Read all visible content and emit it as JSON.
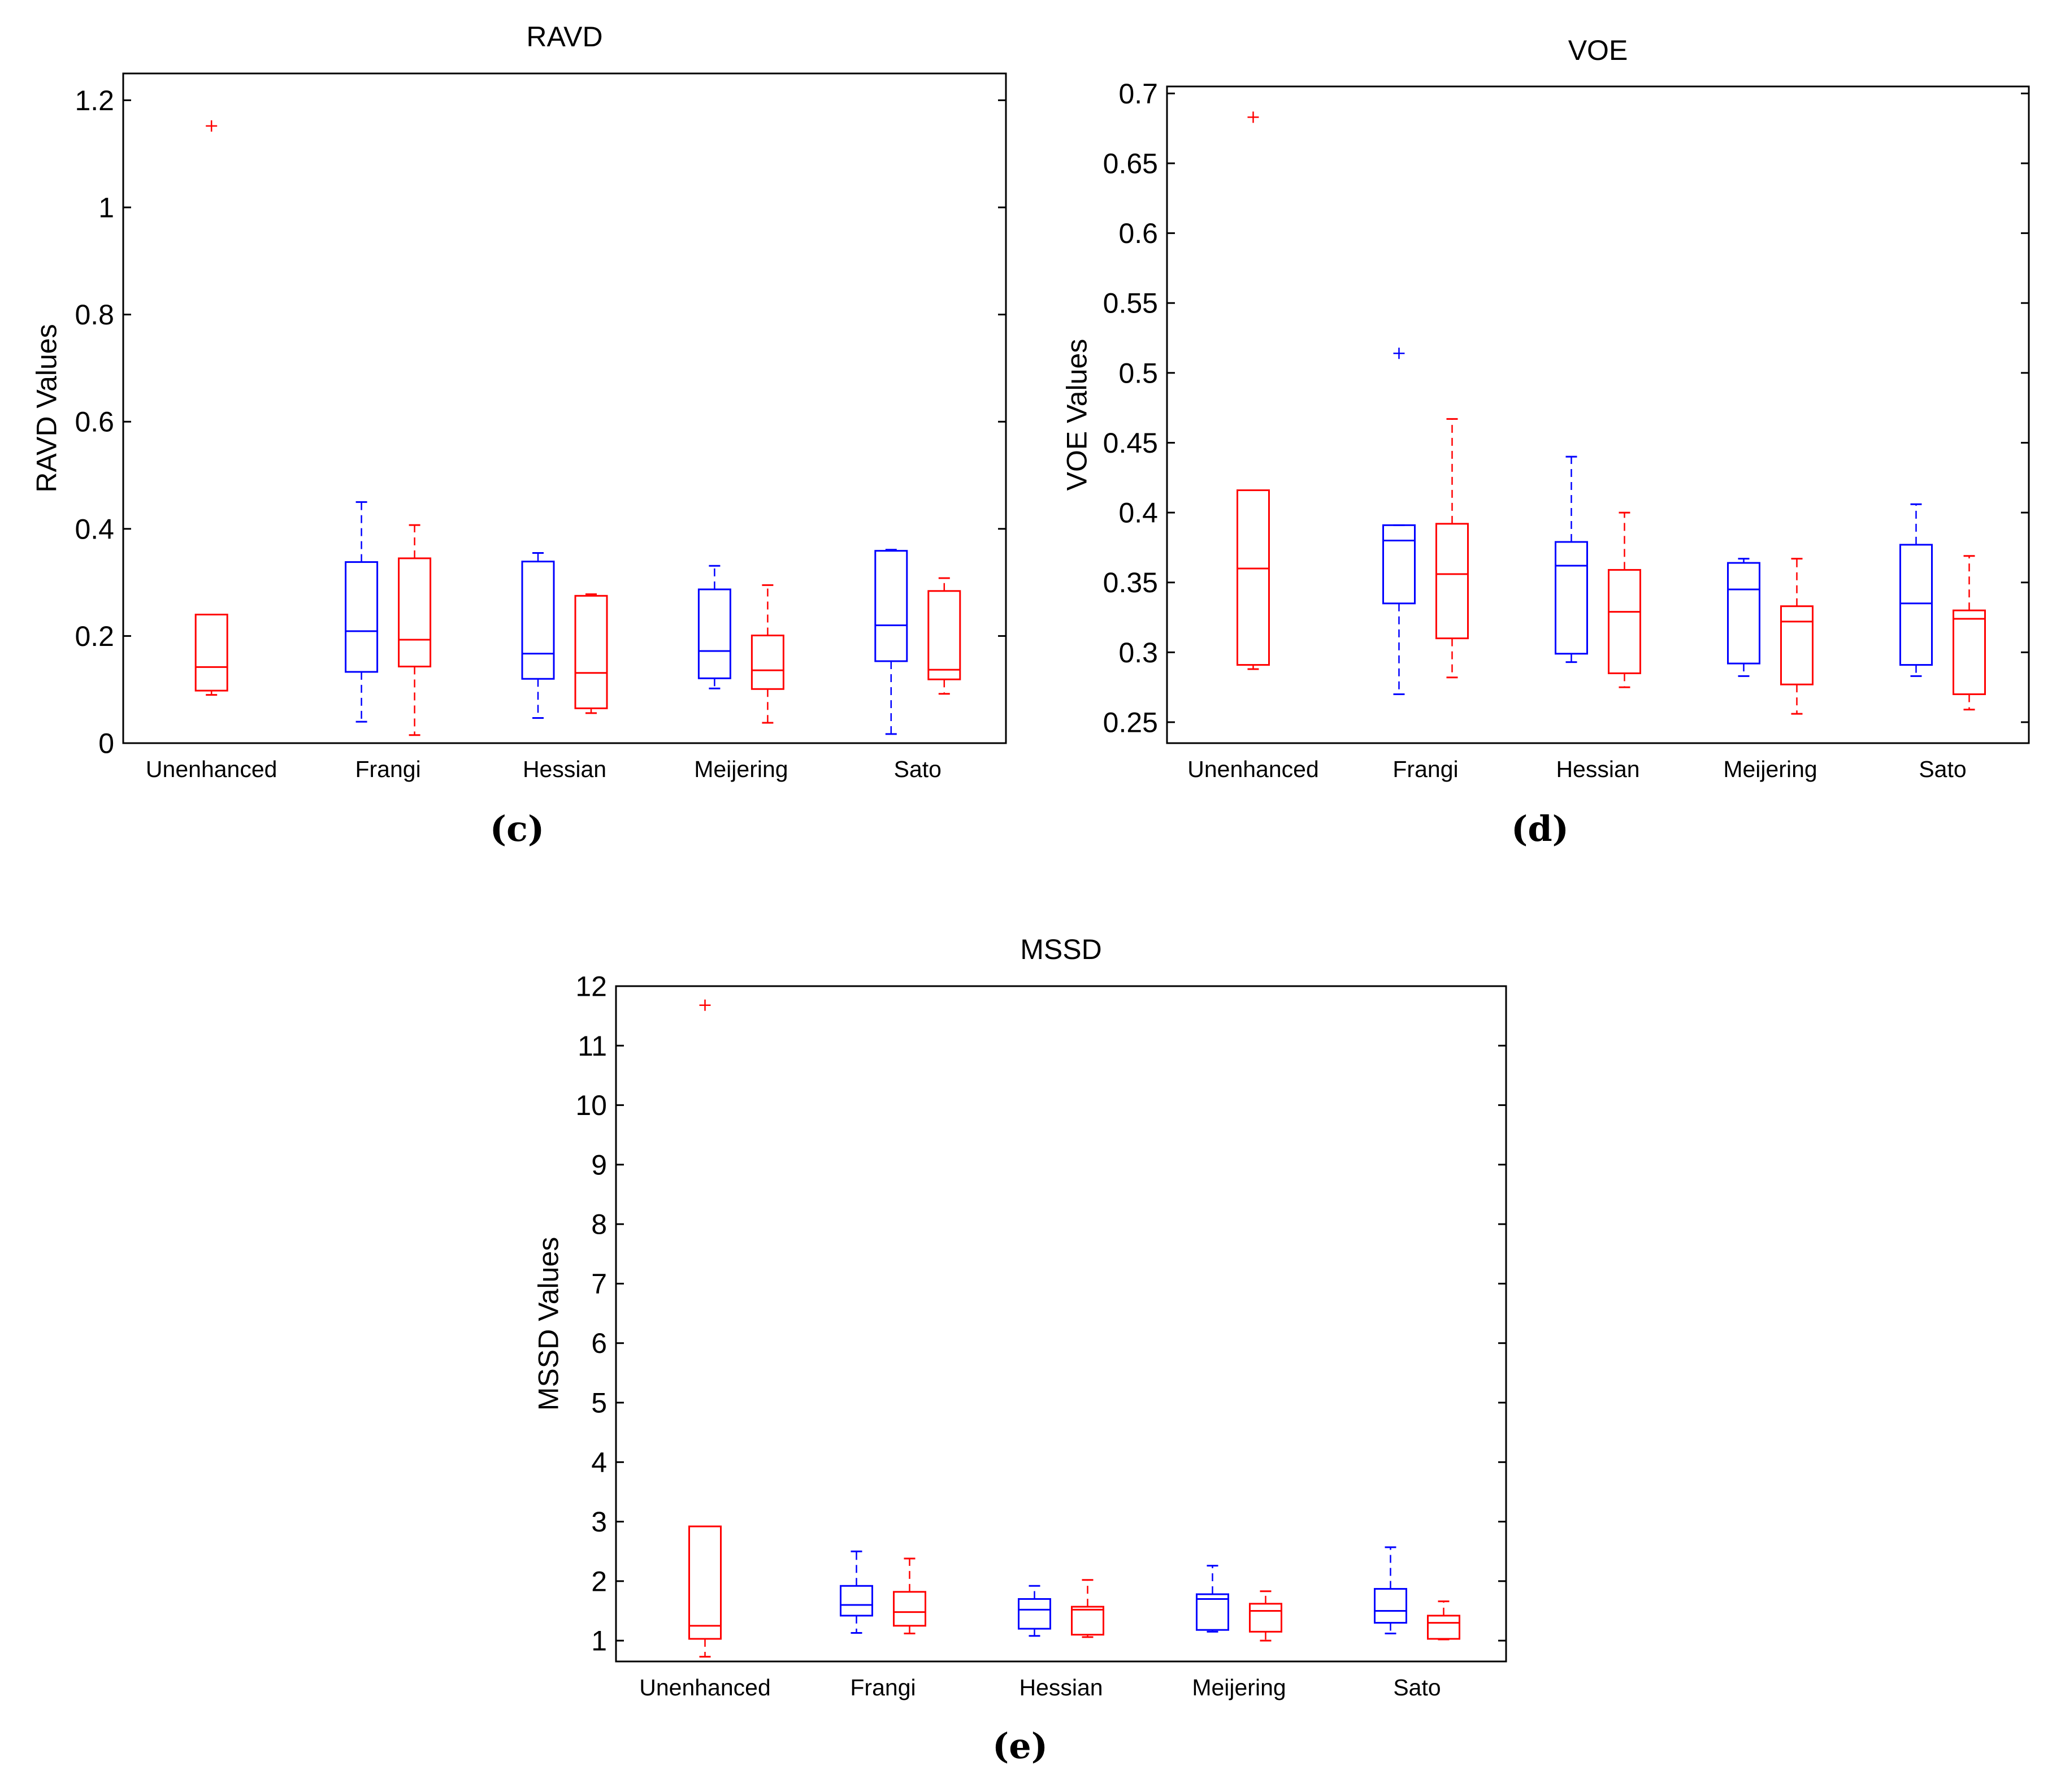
{
  "colors": {
    "enhanced": "#0000FF",
    "unenhanced": "#FF0000",
    "axis": "#000000"
  },
  "chart_data": [
    {
      "id": "c",
      "type": "boxplot",
      "panel_label": "(c)",
      "title": "RAVD",
      "ylabel": "RAVD Values",
      "xlabel": "",
      "ylim": [
        0,
        1.25
      ],
      "yticks": [
        0,
        0.2,
        0.4,
        0.6,
        0.8,
        1,
        1.2
      ],
      "ytick_labels": [
        "0",
        "0.2",
        "0.4",
        "0.6",
        "0.8",
        "1",
        "1.2"
      ],
      "categories": [
        "Unenhanced",
        "Frangi",
        "Hessian",
        "Meijering",
        "Sato"
      ],
      "boxes": [
        {
          "category": "Unenhanced",
          "series": "red",
          "whisker_low": 0.09,
          "q1": 0.098,
          "median": 0.142,
          "q3": 0.24,
          "whisker_high": 0.24,
          "outliers": [
            1.152
          ]
        },
        {
          "category": "Frangi",
          "series": "blue",
          "whisker_low": 0.04,
          "q1": 0.133,
          "median": 0.209,
          "q3": 0.338,
          "whisker_high": 0.45,
          "outliers": []
        },
        {
          "category": "Frangi",
          "series": "red",
          "whisker_low": 0.015,
          "q1": 0.143,
          "median": 0.193,
          "q3": 0.345,
          "whisker_high": 0.407,
          "outliers": []
        },
        {
          "category": "Hessian",
          "series": "blue",
          "whisker_low": 0.047,
          "q1": 0.12,
          "median": 0.167,
          "q3": 0.339,
          "whisker_high": 0.355,
          "outliers": []
        },
        {
          "category": "Hessian",
          "series": "red",
          "whisker_low": 0.056,
          "q1": 0.065,
          "median": 0.131,
          "q3": 0.275,
          "whisker_high": 0.278,
          "outliers": []
        },
        {
          "category": "Meijering",
          "series": "blue",
          "whisker_low": 0.102,
          "q1": 0.121,
          "median": 0.172,
          "q3": 0.287,
          "whisker_high": 0.331,
          "outliers": []
        },
        {
          "category": "Meijering",
          "series": "red",
          "whisker_low": 0.038,
          "q1": 0.101,
          "median": 0.136,
          "q3": 0.201,
          "whisker_high": 0.295,
          "outliers": []
        },
        {
          "category": "Sato",
          "series": "blue",
          "whisker_low": 0.017,
          "q1": 0.153,
          "median": 0.22,
          "q3": 0.359,
          "whisker_high": 0.361,
          "outliers": []
        },
        {
          "category": "Sato",
          "series": "red",
          "whisker_low": 0.092,
          "q1": 0.119,
          "median": 0.137,
          "q3": 0.284,
          "whisker_high": 0.308,
          "outliers": []
        }
      ]
    },
    {
      "id": "d",
      "type": "boxplot",
      "panel_label": "(d)",
      "title": "VOE",
      "ylabel": "VOE Values",
      "xlabel": "",
      "ylim": [
        0.235,
        0.705
      ],
      "yticks": [
        0.25,
        0.3,
        0.35,
        0.4,
        0.45,
        0.5,
        0.55,
        0.6,
        0.65,
        0.7
      ],
      "ytick_labels": [
        "0.25",
        "0.3",
        "0.35",
        "0.4",
        "0.45",
        "0.5",
        "0.55",
        "0.6",
        "0.65",
        "0.7"
      ],
      "categories": [
        "Unenhanced",
        "Frangi",
        "Hessian",
        "Meijering",
        "Sato"
      ],
      "boxes": [
        {
          "category": "Unenhanced",
          "series": "red",
          "whisker_low": 0.288,
          "q1": 0.291,
          "median": 0.36,
          "q3": 0.416,
          "whisker_high": 0.416,
          "outliers": [
            0.683
          ]
        },
        {
          "category": "Frangi",
          "series": "blue",
          "whisker_low": 0.27,
          "q1": 0.335,
          "median": 0.38,
          "q3": 0.391,
          "whisker_high": 0.391,
          "outliers": [
            0.514
          ]
        },
        {
          "category": "Frangi",
          "series": "red",
          "whisker_low": 0.282,
          "q1": 0.31,
          "median": 0.356,
          "q3": 0.392,
          "whisker_high": 0.467,
          "outliers": []
        },
        {
          "category": "Hessian",
          "series": "blue",
          "whisker_low": 0.293,
          "q1": 0.299,
          "median": 0.362,
          "q3": 0.379,
          "whisker_high": 0.44,
          "outliers": []
        },
        {
          "category": "Hessian",
          "series": "red",
          "whisker_low": 0.275,
          "q1": 0.285,
          "median": 0.329,
          "q3": 0.359,
          "whisker_high": 0.4,
          "outliers": []
        },
        {
          "category": "Meijering",
          "series": "blue",
          "whisker_low": 0.283,
          "q1": 0.292,
          "median": 0.345,
          "q3": 0.364,
          "whisker_high": 0.367,
          "outliers": []
        },
        {
          "category": "Meijering",
          "series": "red",
          "whisker_low": 0.256,
          "q1": 0.277,
          "median": 0.322,
          "q3": 0.333,
          "whisker_high": 0.367,
          "outliers": []
        },
        {
          "category": "Sato",
          "series": "blue",
          "whisker_low": 0.283,
          "q1": 0.291,
          "median": 0.335,
          "q3": 0.377,
          "whisker_high": 0.406,
          "outliers": []
        },
        {
          "category": "Sato",
          "series": "red",
          "whisker_low": 0.259,
          "q1": 0.27,
          "median": 0.324,
          "q3": 0.33,
          "whisker_high": 0.369,
          "outliers": []
        }
      ]
    },
    {
      "id": "e",
      "type": "boxplot",
      "panel_label": "(e)",
      "title": "MSSD",
      "ylabel": "MSSD Values",
      "xlabel": "",
      "ylim": [
        0.65,
        12
      ],
      "yticks": [
        1,
        2,
        3,
        4,
        5,
        6,
        7,
        8,
        9,
        10,
        11,
        12
      ],
      "ytick_labels": [
        "1",
        "2",
        "3",
        "4",
        "5",
        "6",
        "7",
        "8",
        "9",
        "10",
        "11",
        "12"
      ],
      "categories": [
        "Unenhanced",
        "Frangi",
        "Hessian",
        "Meijering",
        "Sato"
      ],
      "boxes": [
        {
          "category": "Unenhanced",
          "series": "red",
          "whisker_low": 0.73,
          "q1": 1.03,
          "median": 1.25,
          "q3": 2.92,
          "whisker_high": 2.92,
          "outliers": [
            11.68
          ]
        },
        {
          "category": "Frangi",
          "series": "blue",
          "whisker_low": 1.13,
          "q1": 1.42,
          "median": 1.6,
          "q3": 1.92,
          "whisker_high": 2.5,
          "outliers": []
        },
        {
          "category": "Frangi",
          "series": "red",
          "whisker_low": 1.12,
          "q1": 1.25,
          "median": 1.48,
          "q3": 1.82,
          "whisker_high": 2.38,
          "outliers": []
        },
        {
          "category": "Hessian",
          "series": "blue",
          "whisker_low": 1.08,
          "q1": 1.2,
          "median": 1.52,
          "q3": 1.7,
          "whisker_high": 1.92,
          "outliers": []
        },
        {
          "category": "Hessian",
          "series": "red",
          "whisker_low": 1.06,
          "q1": 1.1,
          "median": 1.52,
          "q3": 1.57,
          "whisker_high": 2.02,
          "outliers": []
        },
        {
          "category": "Meijering",
          "series": "blue",
          "whisker_low": 1.15,
          "q1": 1.18,
          "median": 1.7,
          "q3": 1.78,
          "whisker_high": 2.26,
          "outliers": []
        },
        {
          "category": "Meijering",
          "series": "red",
          "whisker_low": 1.0,
          "q1": 1.15,
          "median": 1.5,
          "q3": 1.62,
          "whisker_high": 1.83,
          "outliers": []
        },
        {
          "category": "Sato",
          "series": "blue",
          "whisker_low": 1.12,
          "q1": 1.3,
          "median": 1.5,
          "q3": 1.87,
          "whisker_high": 2.57,
          "outliers": []
        },
        {
          "category": "Sato",
          "series": "red",
          "whisker_low": 1.02,
          "q1": 1.03,
          "median": 1.3,
          "q3": 1.42,
          "whisker_high": 1.66,
          "outliers": []
        }
      ]
    }
  ]
}
